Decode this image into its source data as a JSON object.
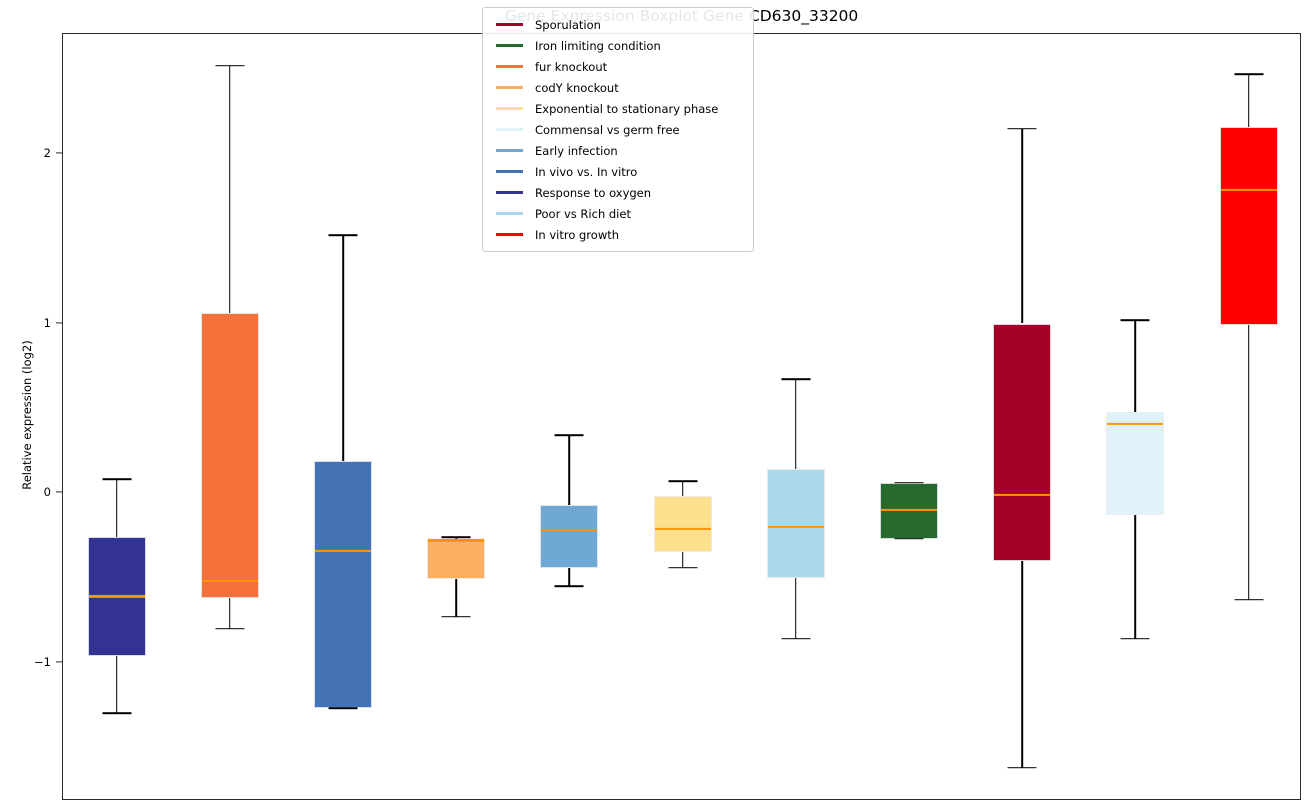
{
  "figure": {
    "title": "Gene Expression Boxplot Gene CD630_33200",
    "ylabel": "Relative expression (log2)"
  },
  "chart_data": {
    "type": "boxplot",
    "title": "Gene Expression Boxplot Gene CD630_33200",
    "xlabel": "",
    "ylabel": "Relative expression (log2)",
    "ylim": [
      -1.82,
      2.71
    ],
    "yticks": [
      -1,
      0,
      1,
      2
    ],
    "grid": false,
    "legend_position": "upper center",
    "median_color": "#FF9500",
    "whisker_color": "#000000",
    "legend": [
      {
        "label": "Sporulation",
        "color": "#A50026"
      },
      {
        "label": "Iron limiting condition",
        "color": "#266B2D"
      },
      {
        "label": "fur knockout",
        "color": "#F4713B"
      },
      {
        "label": "codY knockout",
        "color": "#FDAE61"
      },
      {
        "label": "Exponential to stationary phase",
        "color": "#FDE08B"
      },
      {
        "label": "Commensal vs germ free",
        "color": "#E0F2F8"
      },
      {
        "label": "Early infection",
        "color": "#6FA8D2"
      },
      {
        "label": "In vivo vs. In vitro",
        "color": "#4473B5"
      },
      {
        "label": "Response to oxygen",
        "color": "#333394"
      },
      {
        "label": "Poor vs Rich diet",
        "color": "#ABD9E9"
      },
      {
        "label": "In vitro growth",
        "color": "#FF0000"
      }
    ],
    "boxes": [
      {
        "condition": "Response to oxygen",
        "color": "#333394",
        "whislo": -1.3,
        "q1": -0.96,
        "med": -0.61,
        "q3": -0.26,
        "whishi": 0.08
      },
      {
        "condition": "fur knockout",
        "color": "#F4713B",
        "whislo": -0.8,
        "q1": -0.62,
        "med": -0.52,
        "q3": 1.06,
        "whishi": 2.52
      },
      {
        "condition": "In vivo vs. In vitro",
        "color": "#4473B5",
        "whislo": -1.27,
        "q1": -1.27,
        "med": -0.34,
        "q3": 0.19,
        "whishi": 1.52
      },
      {
        "condition": "codY knockout",
        "color": "#FDAE61",
        "whislo": -0.73,
        "q1": -0.51,
        "med": -0.28,
        "q3": -0.27,
        "whishi": -0.26
      },
      {
        "condition": "Early infection",
        "color": "#6FA8D2",
        "whislo": -0.55,
        "q1": -0.44,
        "med": -0.22,
        "q3": -0.07,
        "whishi": 0.34
      },
      {
        "condition": "Exponential to stationary phase",
        "color": "#FDE08B",
        "whislo": -0.44,
        "q1": -0.35,
        "med": -0.21,
        "q3": -0.02,
        "whishi": 0.07
      },
      {
        "condition": "Poor vs Rich diet",
        "color": "#ABD9E9",
        "whislo": -0.86,
        "q1": -0.5,
        "med": -0.2,
        "q3": 0.14,
        "whishi": 0.67
      },
      {
        "condition": "Iron limiting condition",
        "color": "#266B2D",
        "whislo": -0.27,
        "q1": -0.27,
        "med": -0.1,
        "q3": 0.06,
        "whishi": 0.06
      },
      {
        "condition": "Sporulation",
        "color": "#A50026",
        "whislo": -1.62,
        "q1": -0.4,
        "med": -0.01,
        "q3": 1.0,
        "whishi": 2.15
      },
      {
        "condition": "Commensal vs germ free",
        "color": "#E0F2F8",
        "whislo": -0.86,
        "q1": -0.13,
        "med": 0.41,
        "q3": 0.48,
        "whishi": 1.02
      },
      {
        "condition": "In vitro growth",
        "color": "#FF0000",
        "whislo": -0.63,
        "q1": 0.99,
        "med": 1.79,
        "q3": 2.16,
        "whishi": 2.47
      }
    ]
  }
}
